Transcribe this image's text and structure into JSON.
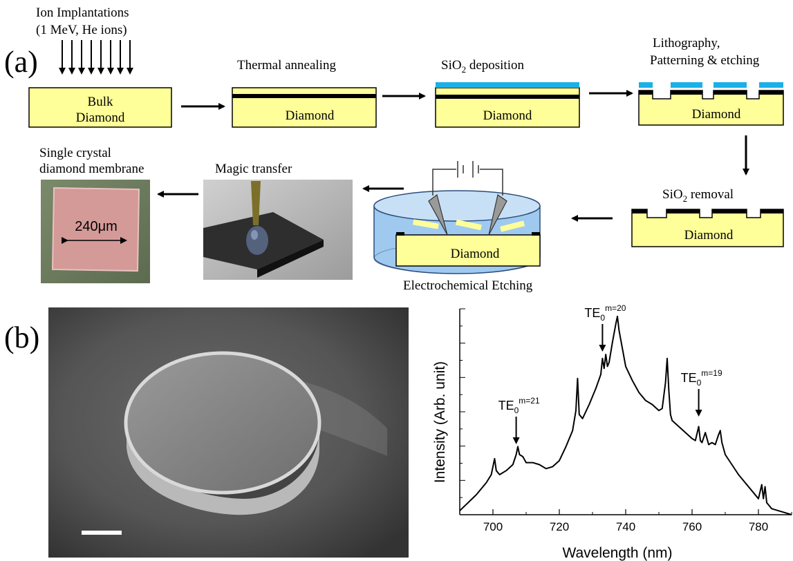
{
  "panel_a": {
    "label": "(a)",
    "ion": {
      "line1": "Ion Implantations",
      "line2": "(1 MeV, He ions)"
    },
    "bulk": {
      "line1": "Bulk",
      "line2": "Diamond"
    },
    "step_anneal": {
      "caption": "Thermal annealing",
      "box": "Diamond"
    },
    "step_sio2_dep": {
      "caption_main": "SiO",
      "caption_sub": "2",
      "caption_rest": " deposition",
      "box": "Diamond"
    },
    "step_litho": {
      "line1": "Lithography,",
      "line2": "Patterning & etching",
      "box": "Diamond"
    },
    "step_sio2_rem": {
      "caption_main": "SiO",
      "caption_sub": "2",
      "caption_rest": " removal",
      "box": "Diamond"
    },
    "step_etch": {
      "caption": "Electrochemical Etching",
      "box": "Diamond"
    },
    "step_transfer": {
      "caption": "Magic transfer"
    },
    "step_membrane": {
      "line1": "Single crystal",
      "line2": "diamond membrane",
      "scale": "240μm"
    },
    "colors": {
      "diamond": "#ffff99",
      "carbon_layer": "#000000",
      "sio2": "#1ab0e8",
      "bath": "#9fc9ef",
      "membrane": "#d49a98"
    }
  },
  "panel_b": {
    "label": "(b)",
    "sem": {
      "scalebar": ""
    }
  },
  "chart_data": {
    "type": "line",
    "title": "",
    "xlabel": "Wavelength (nm)",
    "ylabel": "Intensity (Arb. unit)",
    "xlim": [
      690,
      790
    ],
    "x_ticks": [
      "700",
      "720",
      "740",
      "760",
      "780"
    ],
    "y_ticks_labeled": false,
    "annotations": [
      {
        "base": "TE",
        "sub": "0",
        "sup": "m=21",
        "x": 707
      },
      {
        "base": "TE",
        "sub": "0",
        "sup": "m=20",
        "x": 733
      },
      {
        "base": "TE",
        "sub": "0",
        "sup": "m=19",
        "x": 762
      }
    ],
    "series": [
      {
        "x": [
          690,
          695,
          698,
          699.5,
          700.5,
          701,
          702,
          704,
          706,
          707,
          707.5,
          708,
          709,
          710,
          712,
          714,
          716,
          718,
          720,
          722,
          724,
          725,
          725.5,
          726,
          727,
          729,
          731,
          732.5,
          733,
          733.5,
          734,
          734.5,
          735,
          736,
          737,
          737.5,
          738,
          739,
          740,
          742,
          744,
          746,
          748,
          750,
          751,
          752,
          752.5,
          753,
          753.5,
          754,
          756,
          758,
          760,
          761,
          762,
          762.5,
          763,
          764,
          765,
          766,
          767,
          768,
          768.5,
          769,
          770,
          772,
          774,
          776,
          778,
          780,
          781,
          781.5,
          782,
          782.5,
          783,
          784,
          786,
          788,
          790
        ],
        "y": [
          0.02,
          0.1,
          0.16,
          0.2,
          0.28,
          0.22,
          0.2,
          0.22,
          0.25,
          0.3,
          0.34,
          0.3,
          0.29,
          0.26,
          0.26,
          0.25,
          0.23,
          0.24,
          0.27,
          0.34,
          0.42,
          0.52,
          0.68,
          0.5,
          0.48,
          0.55,
          0.63,
          0.7,
          0.78,
          0.73,
          0.8,
          0.74,
          0.76,
          0.86,
          0.95,
          0.99,
          0.92,
          0.83,
          0.74,
          0.67,
          0.61,
          0.57,
          0.55,
          0.52,
          0.53,
          0.66,
          0.78,
          0.62,
          0.5,
          0.47,
          0.44,
          0.41,
          0.38,
          0.37,
          0.44,
          0.37,
          0.36,
          0.41,
          0.35,
          0.36,
          0.35,
          0.4,
          0.42,
          0.36,
          0.3,
          0.25,
          0.2,
          0.16,
          0.12,
          0.08,
          0.15,
          0.08,
          0.14,
          0.06,
          0.05,
          0.03,
          0.02,
          0.01,
          0.0
        ]
      }
    ]
  }
}
